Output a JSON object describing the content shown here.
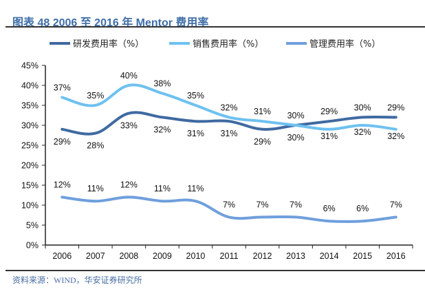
{
  "title": "图表 48 2006 至 2016 年 Mentor 费用率",
  "source": "资料来源：WIND，华安证券研究所",
  "chart_data": {
    "type": "line",
    "title": "图表 48 2006 至 2016 年 Mentor 费用率",
    "xlabel": "",
    "ylabel": "",
    "categories": [
      "2006",
      "2007",
      "2008",
      "2009",
      "2010",
      "2011",
      "2012",
      "2013",
      "2014",
      "2015",
      "2016"
    ],
    "ylim": [
      0,
      45
    ],
    "yticks": [
      "0%",
      "5%",
      "10%",
      "15%",
      "20%",
      "25%",
      "30%",
      "35%",
      "40%",
      "45%"
    ],
    "ytick_values": [
      0,
      5,
      10,
      15,
      20,
      25,
      30,
      35,
      40,
      45
    ],
    "grid": false,
    "smooth": true,
    "legend_position": "top",
    "series": [
      {
        "name": "研发费用率（%）",
        "color": "#3f6aa1",
        "values": [
          29,
          28,
          33,
          32,
          31,
          31,
          29,
          30,
          31,
          32,
          32
        ],
        "label_suffix": "%"
      },
      {
        "name": "销售费用率（%）",
        "color": "#6ec1f0",
        "values": [
          37,
          35,
          40,
          38,
          35,
          32,
          31,
          30,
          29,
          30,
          29
        ],
        "label_suffix": "%"
      },
      {
        "name": "管理费用率（%）",
        "color": "#6f9fdc",
        "values": [
          12,
          11,
          12,
          11,
          11,
          7,
          7,
          7,
          6,
          6,
          7
        ],
        "label_suffix": "%"
      }
    ]
  }
}
